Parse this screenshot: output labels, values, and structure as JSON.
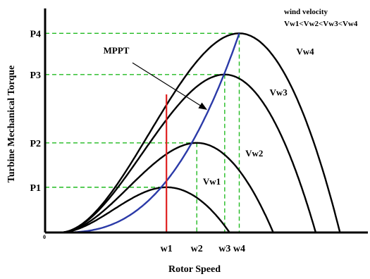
{
  "chart_data": {
    "type": "line",
    "ylabel": "Turbine Mechanical Torque",
    "xlabel": "Rotor Speed",
    "legend_title": "wind velocity",
    "legend_relation": "Vw1<Vw2<Vw3<Vw4",
    "legend_placement": "top-right",
    "x_ticks": [
      {
        "label": "w1",
        "value": 1.0
      },
      {
        "label": "w2",
        "value": 1.25
      },
      {
        "label": "w3",
        "value": 1.48
      },
      {
        "label": "w4",
        "value": 1.6
      }
    ],
    "y_ticks": [
      {
        "label": "P1",
        "value": 1.0
      },
      {
        "label": "P2",
        "value": 1.98
      },
      {
        "label": "P3",
        "value": 3.49
      },
      {
        "label": "P4",
        "value": 4.4
      }
    ],
    "x_range": [
      0,
      2.66
    ],
    "y_range": [
      0,
      4.95
    ],
    "series": [
      {
        "name": "Vw1",
        "label_pos": [
          1.3,
          1.06
        ],
        "peak": [
          1.0,
          1.0
        ],
        "end_x": 1.52,
        "color": "#000000"
      },
      {
        "name": "Vw2",
        "label_pos": [
          1.65,
          1.68
        ],
        "peak": [
          1.25,
          1.98
        ],
        "end_x": 1.88,
        "color": "#000000"
      },
      {
        "name": "Vw3",
        "label_pos": [
          1.85,
          3.03
        ],
        "peak": [
          1.48,
          3.49
        ],
        "end_x": 2.23,
        "color": "#000000"
      },
      {
        "name": "Vw4",
        "label_pos": [
          2.07,
          3.93
        ],
        "peak": [
          1.6,
          4.4
        ],
        "end_x": 2.43,
        "color": "#000000"
      }
    ],
    "mppt": {
      "label": "MPPT",
      "color": "#2b3aa8",
      "label_pos": [
        0.48,
        3.95
      ],
      "arrow_from": [
        0.72,
        3.75
      ],
      "arrow_to": [
        1.33,
        2.72
      ]
    },
    "red_marker": {
      "x": 1.0,
      "y_top": 3.05,
      "color": "#e02020"
    },
    "guide_color": "#22bb22",
    "grid": false
  }
}
